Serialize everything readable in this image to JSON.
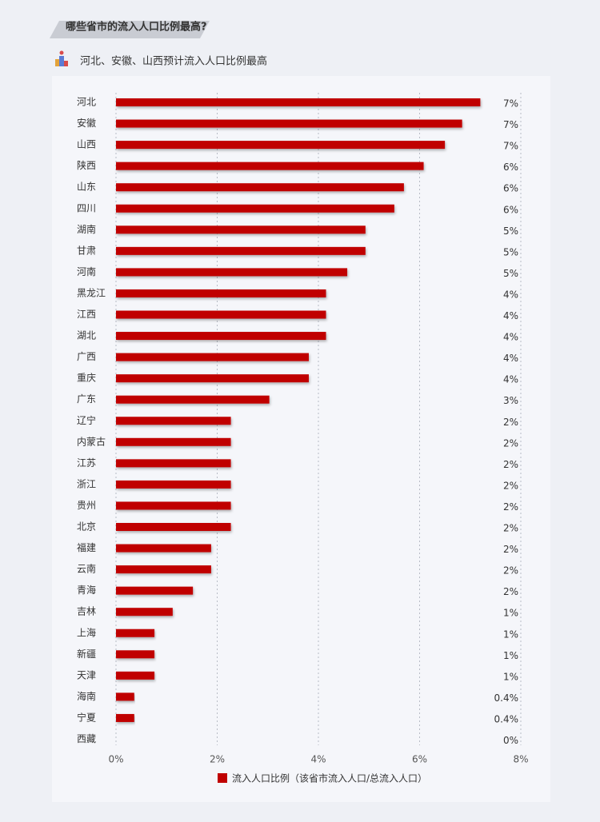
{
  "header": {
    "title": "哪些省市的流入人口比例最高?",
    "subtitle": "河北、安徽、山西预计流入人口比例最高"
  },
  "chart_data": {
    "type": "hbar",
    "categories": [
      "河北",
      "安徽",
      "山西",
      "陕西",
      "山东",
      "四川",
      "湖南",
      "甘肃",
      "河南",
      "黑龙江",
      "江西",
      "湖北",
      "广西",
      "重庆",
      "广东",
      "辽宁",
      "内蒙古",
      "江苏",
      "浙江",
      "贵州",
      "北京",
      "福建",
      "云南",
      "青海",
      "吉林",
      "上海",
      "新疆",
      "天津",
      "海南",
      "宁夏",
      "西藏"
    ],
    "series": [
      {
        "name": "流入人口比例（该省市流入人口/总流入人口）",
        "color": "#c00000",
        "values": [
          7.2,
          6.84,
          6.5,
          6.08,
          5.69,
          5.5,
          4.93,
          4.93,
          4.57,
          4.15,
          4.15,
          4.15,
          3.81,
          3.81,
          3.03,
          2.27,
          2.27,
          2.27,
          2.27,
          2.27,
          2.27,
          1.88,
          1.88,
          1.52,
          1.12,
          0.76,
          0.76,
          0.76,
          0.36,
          0.36,
          0
        ],
        "value_labels": [
          "7%",
          "7%",
          "7%",
          "6%",
          "6%",
          "6%",
          "5%",
          "5%",
          "5%",
          "4%",
          "4%",
          "4%",
          "4%",
          "4%",
          "3%",
          "2%",
          "2%",
          "2%",
          "2%",
          "2%",
          "2%",
          "2%",
          "2%",
          "2%",
          "1%",
          "1%",
          "1%",
          "1%",
          "0.4%",
          "0.4%",
          "0%"
        ]
      }
    ],
    "xlim": [
      0,
      8
    ],
    "xticks": [
      {
        "value": 0,
        "label": "0%"
      },
      {
        "value": 2,
        "label": "2%"
      },
      {
        "value": 4,
        "label": "4%"
      },
      {
        "value": 6,
        "label": "6%"
      },
      {
        "value": 8,
        "label": "8%"
      }
    ],
    "grid": true
  }
}
